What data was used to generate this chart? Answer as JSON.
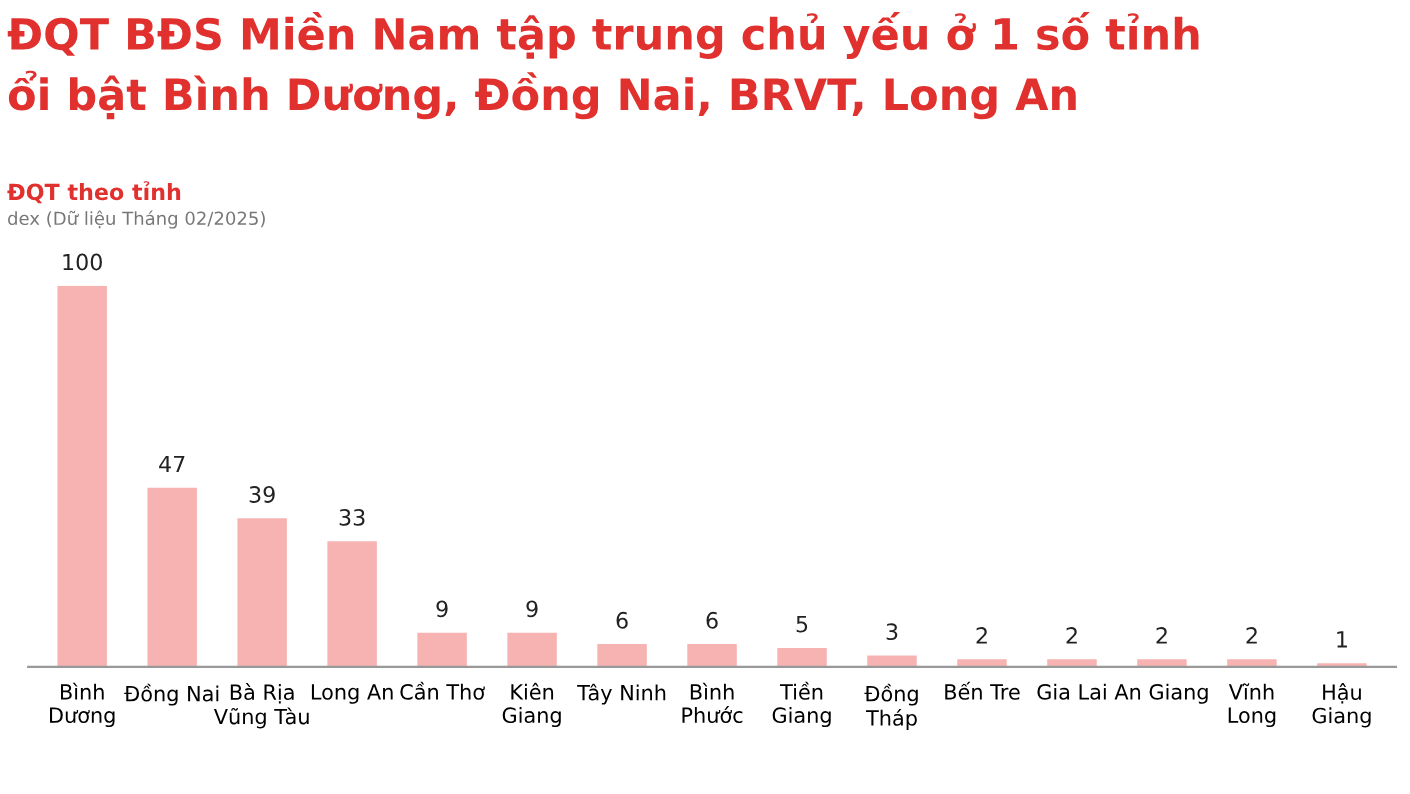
{
  "chart_data": {
    "type": "bar",
    "title": "ĐQT BĐS Miền Nam tập trung chủ yếu ở 1 số tỉnh\nổi bật Bình Dương, Đồng Nai, BRVT, Long An",
    "subtitle": "ĐQT theo tỉnh",
    "annotations": [
      "dex (Dữ liệu Tháng 02/2025)"
    ],
    "categories": [
      "Bình\nDương",
      "Đồng Nai",
      "Bà Rịa\nVũng Tàu",
      "Long An",
      "Cần Thơ",
      "Kiên\nGiang",
      "Tây Ninh",
      "Bình\nPhước",
      "Tiền\nGiang",
      "Đồng\nTháp",
      "Bến Tre",
      "Gia Lai",
      "An Giang",
      "Vĩnh\nLong",
      "Hậu\nGiang"
    ],
    "values": [
      100,
      47,
      39,
      33,
      9,
      9,
      6,
      6,
      5,
      3,
      2,
      2,
      2,
      2,
      1
    ],
    "color": "#f6b3b1",
    "data_labels": true,
    "grid": false,
    "legend": false
  }
}
